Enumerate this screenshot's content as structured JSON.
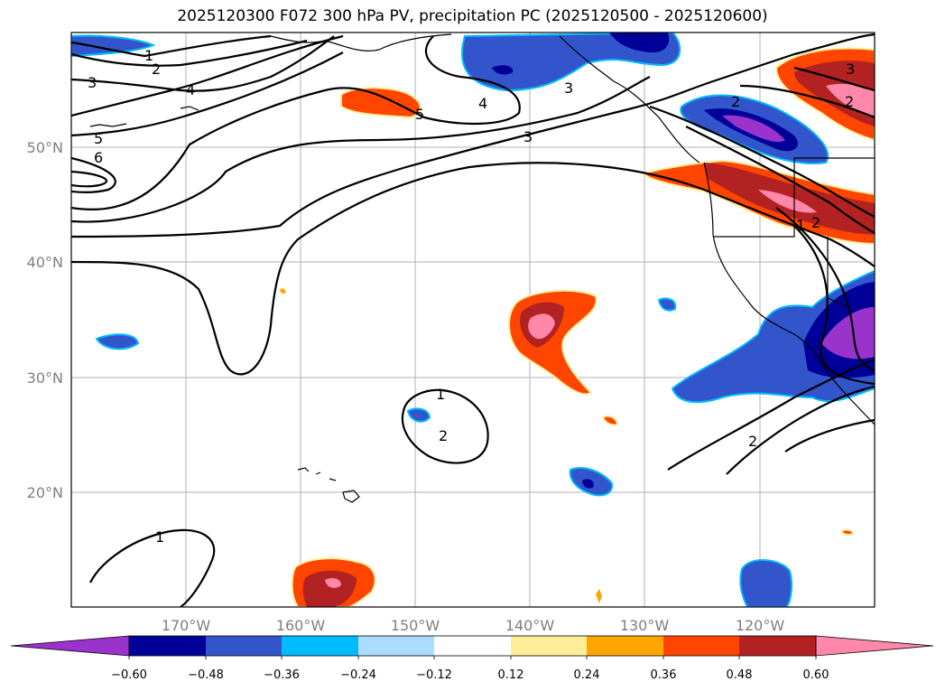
{
  "title": "2025120300 F072 300 hPa PV, precipitation PC (2025120500 - 2025120600)",
  "lon_ticks": [
    "170°W",
    "160°W",
    "150°W",
    "140°W",
    "130°W",
    "120°W"
  ],
  "lat_ticks": [
    "50°N",
    "40°N",
    "30°N",
    "20°N"
  ],
  "colorbar": {
    "ticks": [
      "−0.60",
      "−0.48",
      "−0.36",
      "−0.24",
      "−0.12",
      "0.12",
      "0.24",
      "0.36",
      "0.48",
      "0.60"
    ],
    "colors": [
      "#9933cc",
      "#000099",
      "#3355cc",
      "#00bbff",
      "#aaddff",
      "#ffffff",
      "#ffee99",
      "#ffa500",
      "#ff4500",
      "#b22222",
      "#ff88aa"
    ],
    "extend": "both"
  },
  "contour_labels": [
    "1",
    "2",
    "3",
    "4",
    "5",
    "6",
    "5",
    "3",
    "4",
    "3",
    "2",
    "3",
    "2",
    "1",
    "2",
    "1",
    "2",
    "2",
    "1"
  ],
  "map": {
    "projection": "equirectangular",
    "lon_range": [
      -180,
      -110
    ],
    "lat_range": [
      10,
      60
    ],
    "gridlines": true
  }
}
